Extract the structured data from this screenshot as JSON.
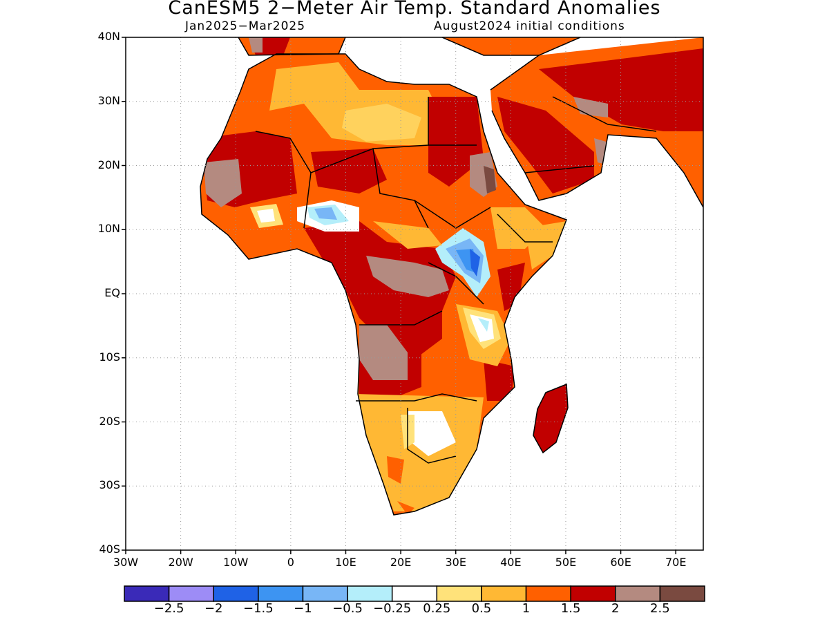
{
  "title": "CanESM5 2−Meter Air Temp. Standard Anomalies",
  "period": "Jan2025−Mar2025",
  "init": "August2024 initial conditions",
  "map": {
    "lon_range": [
      -30,
      75
    ],
    "lat_range": [
      -40,
      40
    ],
    "lat_ticks": [
      {
        "lat": 40,
        "label": "40N"
      },
      {
        "lat": 30,
        "label": "30N"
      },
      {
        "lat": 20,
        "label": "20N"
      },
      {
        "lat": 10,
        "label": "10N"
      },
      {
        "lat": 0,
        "label": "EQ"
      },
      {
        "lat": -10,
        "label": "10S"
      },
      {
        "lat": -20,
        "label": "20S"
      },
      {
        "lat": -30,
        "label": "30S"
      },
      {
        "lat": -40,
        "label": "40S"
      }
    ],
    "lon_ticks": [
      {
        "lon": -30,
        "label": "30W"
      },
      {
        "lon": -20,
        "label": "20W"
      },
      {
        "lon": -10,
        "label": "10W"
      },
      {
        "lon": 0,
        "label": "0"
      },
      {
        "lon": 10,
        "label": "10E"
      },
      {
        "lon": 20,
        "label": "20E"
      },
      {
        "lon": 30,
        "label": "30E"
      },
      {
        "lon": 40,
        "label": "40E"
      },
      {
        "lon": 50,
        "label": "50E"
      },
      {
        "lon": 60,
        "label": "60E"
      },
      {
        "lon": 70,
        "label": "70E"
      }
    ],
    "grid": "dotted"
  },
  "colorbar": {
    "colors": [
      "#3a2ab8",
      "#9d8cf6",
      "#1f62e6",
      "#3d94f2",
      "#78b6f6",
      "#b4eefa",
      "#ffffff",
      "#ffe27a",
      "#ffb834",
      "#ff6000",
      "#c10000",
      "#b48a80",
      "#7a4a40"
    ],
    "labels": [
      "−2.5",
      "−2",
      "−1.5",
      "−1",
      "−0.5",
      "−0.25",
      "0.25",
      "0.5",
      "1",
      "1.5",
      "2",
      "2.5"
    ]
  }
}
